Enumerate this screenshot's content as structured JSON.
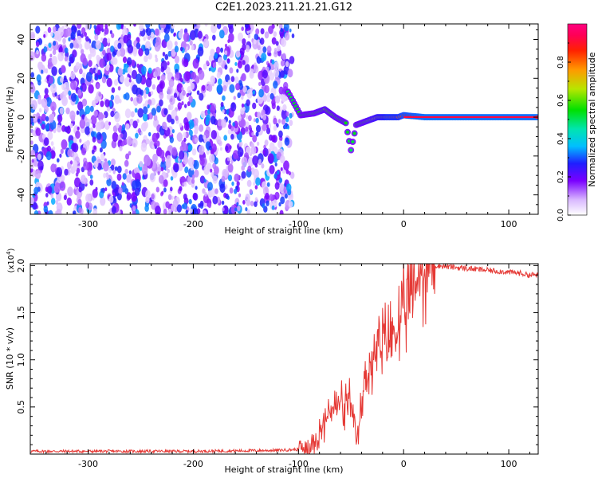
{
  "page_title": "C2E1.2023.211.21.21.G12",
  "chart_data": [
    {
      "type": "heatmap",
      "title": "C2E1.2023.211.21.21.G12",
      "xlabel": "Height of straight line (km)",
      "ylabel": "Frequency (Hz)",
      "xlim": [
        -355,
        128
      ],
      "ylim": [
        -50,
        48
      ],
      "x_ticks": [
        -300,
        -200,
        -100,
        0,
        100
      ],
      "y_ticks": [
        -40,
        -20,
        0,
        20,
        40
      ],
      "grid": false,
      "colorbar": {
        "label": "Normalized spectral amplitude",
        "ticks": [
          "0.0",
          "0.2",
          "0.4",
          "0.6",
          "0.8"
        ],
        "range": [
          0,
          1
        ]
      },
      "regions": [
        {
          "description": "broadband noise",
          "x_range": [
            -355,
            -105
          ],
          "y_range": [
            -50,
            48
          ],
          "amplitude_range": [
            0.05,
            0.35
          ]
        },
        {
          "description": "signal track",
          "points": [
            {
              "x": -110,
              "y": 13,
              "amp": 0.5
            },
            {
              "x": -98,
              "y": 1,
              "amp": 0.55
            },
            {
              "x": -85,
              "y": 2,
              "amp": 0.55
            },
            {
              "x": -75,
              "y": 4,
              "amp": 0.6
            },
            {
              "x": -65,
              "y": 0,
              "amp": 0.55
            },
            {
              "x": -55,
              "y": -3,
              "amp": 0.55
            },
            {
              "x": -50,
              "y": -17,
              "amp": 0.5
            },
            {
              "x": -45,
              "y": -4,
              "amp": 0.55
            },
            {
              "x": -35,
              "y": -2,
              "amp": 0.6
            },
            {
              "x": -25,
              "y": 0,
              "amp": 0.7
            },
            {
              "x": -15,
              "y": 0,
              "amp": 0.8
            },
            {
              "x": -5,
              "y": 0,
              "amp": 0.8
            },
            {
              "x": 0,
              "y": 1,
              "amp": 0.85
            },
            {
              "x": 20,
              "y": 0,
              "amp": 0.9
            },
            {
              "x": 60,
              "y": 0,
              "amp": 0.9
            },
            {
              "x": 128,
              "y": 0,
              "amp": 0.9
            }
          ]
        }
      ]
    },
    {
      "type": "line",
      "xlabel": "Height of straight line (km)",
      "ylabel": "SNR (10 * v/v)",
      "yscale_label": "(x10",
      "yscale_exponent": "4",
      "yscale_close": ")",
      "xlim": [
        -355,
        128
      ],
      "ylim": [
        0,
        2.02
      ],
      "x_ticks": [
        -300,
        -200,
        -100,
        0,
        100
      ],
      "y_ticks": [
        0.5,
        1.0,
        1.5,
        2.0
      ],
      "y_tick_labels": [
        "0.5",
        "1.0",
        "1.5",
        "2.0"
      ],
      "grid": false,
      "series_color": "#e53935",
      "x": [
        -355,
        -300,
        -200,
        -120,
        -100,
        -92,
        -88,
        -84,
        -80,
        -76,
        -72,
        -68,
        -64,
        -60,
        -56,
        -52,
        -48,
        -44,
        -40,
        -36,
        -32,
        -28,
        -24,
        -20,
        -16,
        -12,
        -8,
        -4,
        0,
        4,
        8,
        12,
        16,
        20,
        24,
        28,
        32,
        40,
        50,
        60,
        70,
        80,
        90,
        100,
        110,
        120,
        128
      ],
      "values": [
        0.03,
        0.03,
        0.03,
        0.04,
        0.05,
        0.08,
        0.12,
        0.18,
        0.22,
        0.3,
        0.42,
        0.5,
        0.48,
        0.55,
        0.45,
        0.6,
        0.3,
        0.15,
        0.5,
        0.85,
        0.95,
        1.0,
        1.1,
        1.15,
        1.2,
        1.25,
        1.3,
        1.35,
        1.45,
        1.6,
        1.72,
        1.82,
        1.9,
        1.96,
        1.99,
        2.0,
        2.0,
        1.99,
        1.98,
        1.97,
        1.96,
        1.95,
        1.94,
        1.93,
        1.92,
        1.9,
        1.9
      ]
    }
  ]
}
